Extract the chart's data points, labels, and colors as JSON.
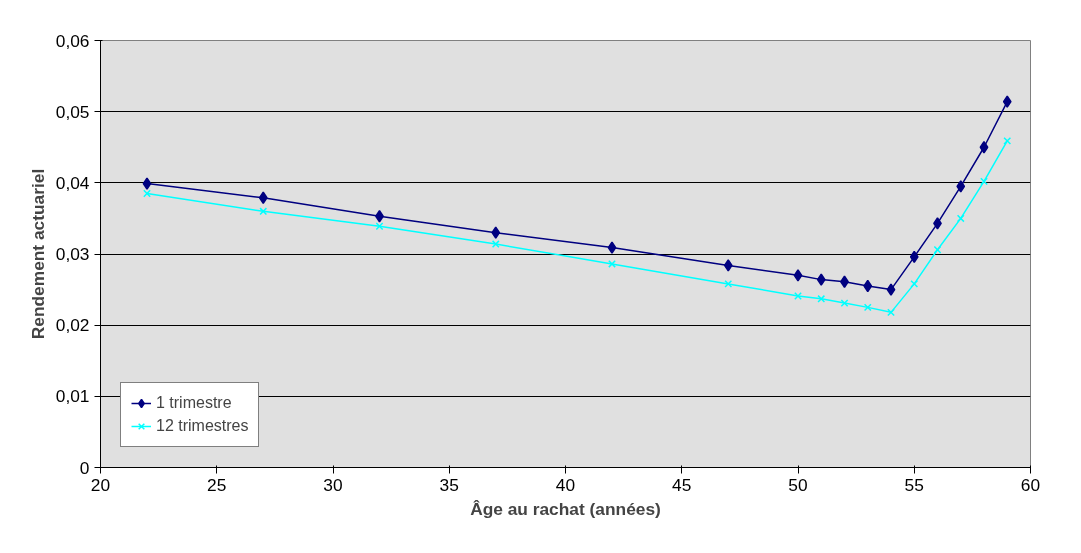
{
  "chart_data": {
    "type": "line",
    "xlabel": "Âge au rachat (années)",
    "ylabel": "Rendement actuariel",
    "x": [
      22,
      27,
      32,
      37,
      42,
      47,
      50,
      51,
      52,
      53,
      54,
      55,
      56,
      57,
      58,
      59
    ],
    "series": [
      {
        "name": "1 trimestre",
        "color": "#000080",
        "marker": "diamond",
        "values": [
          0.0399,
          0.0379,
          0.0353,
          0.033,
          0.0309,
          0.0284,
          0.027,
          0.0264,
          0.0261,
          0.0255,
          0.025,
          0.0296,
          0.0343,
          0.0395,
          0.045,
          0.0514
        ]
      },
      {
        "name": "12 trimestres",
        "color": "#00ffff",
        "marker": "cross",
        "values": [
          0.0385,
          0.036,
          0.0339,
          0.0314,
          0.0286,
          0.0258,
          0.0241,
          0.0237,
          0.0231,
          0.0225,
          0.0218,
          0.0258,
          0.0306,
          0.035,
          0.0402,
          0.0459
        ]
      }
    ],
    "xlim": [
      20,
      60
    ],
    "xticks": [
      20,
      25,
      30,
      35,
      40,
      45,
      50,
      55,
      60
    ],
    "ylim": [
      0,
      0.06
    ],
    "yticks": [
      0,
      {
        "value": 0.01,
        "label": "0,01"
      },
      {
        "value": 0.02,
        "label": "0,02"
      },
      {
        "value": 0.03,
        "label": "0,03"
      },
      {
        "value": 0.04,
        "label": "0,04"
      },
      {
        "value": 0.05,
        "label": "0,05"
      },
      {
        "value": 0.06,
        "label": "0,06"
      }
    ],
    "grid": "y",
    "legend": "bottom left",
    "line_style": "solid"
  }
}
